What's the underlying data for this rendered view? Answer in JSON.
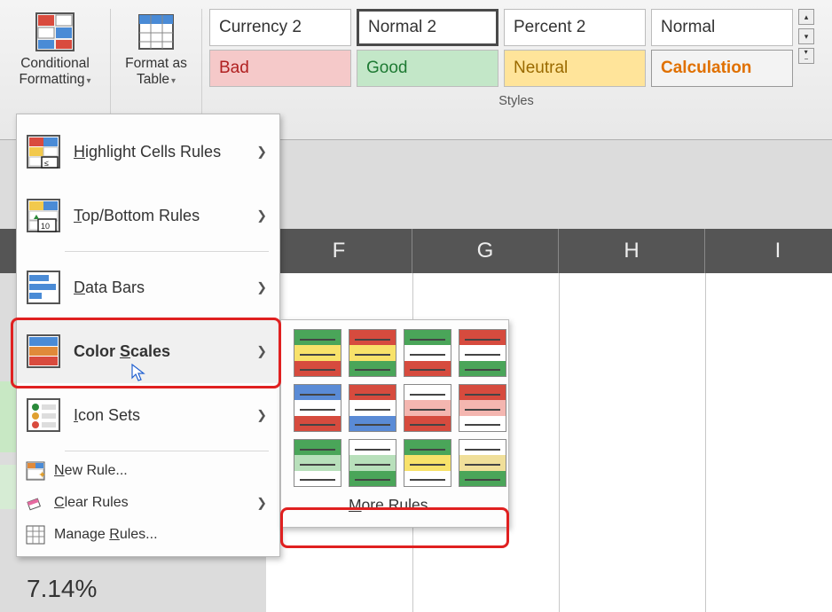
{
  "ribbon": {
    "cond_fmt": "Conditional Formatting",
    "fmt_table": "Format as Table",
    "styles_caption": "Styles",
    "styles": {
      "row1": [
        {
          "label": "Currency 2",
          "bg": "#ffffff",
          "fg": "#333333",
          "border": "#bcbcbc"
        },
        {
          "label": "Normal 2",
          "bg": "#ffffff",
          "fg": "#333333",
          "border": "#4a4a4a",
          "border_w": "3px"
        },
        {
          "label": "Percent 2",
          "bg": "#ffffff",
          "fg": "#333333",
          "border": "#bcbcbc"
        },
        {
          "label": "Normal",
          "bg": "#ffffff",
          "fg": "#333333",
          "border": "#bcbcbc"
        }
      ],
      "row2": [
        {
          "label": "Bad",
          "bg": "#f5c9c9",
          "fg": "#b02020",
          "border": "#bcbcbc"
        },
        {
          "label": "Good",
          "bg": "#c3e7c8",
          "fg": "#1e7a33",
          "border": "#bcbcbc"
        },
        {
          "label": "Neutral",
          "bg": "#ffe49a",
          "fg": "#9a6a00",
          "border": "#bcbcbc"
        },
        {
          "label": "Calculation",
          "bg": "#f3f3f3",
          "fg": "#e07000",
          "border": "#999999",
          "bold": true
        }
      ]
    }
  },
  "columns": [
    "F",
    "G",
    "H",
    "I"
  ],
  "visible_value": "7.14%",
  "menu": {
    "highlight": "Highlight Cells Rules",
    "topbottom": "Top/Bottom Rules",
    "databars": "Data Bars",
    "colorscales": "Color Scales",
    "iconsets": "Icon Sets",
    "newrule": "New Rule...",
    "clear": "Clear Rules",
    "manage": "Manage Rules...",
    "hotkeys": {
      "highlight": "H",
      "topbottom": "T",
      "databars": "D",
      "colorscales": "S",
      "iconsets": "I",
      "newrule": "N",
      "clear": "C",
      "manage": "R"
    }
  },
  "submenu": {
    "more": "More Rules...",
    "hotkey_more": "M",
    "swatches": [
      [
        "#4aa559",
        "#f8e26a",
        "#d64b3e"
      ],
      [
        "#d64b3e",
        "#f8e26a",
        "#4aa559"
      ],
      [
        "#4aa559",
        "#ffffff",
        "#d64b3e"
      ],
      [
        "#d64b3e",
        "#ffffff",
        "#4aa559"
      ],
      [
        "#5a8bd6",
        "#ffffff",
        "#d64b3e"
      ],
      [
        "#d64b3e",
        "#ffffff",
        "#5a8bd6"
      ],
      [
        "#ffffff",
        "#f4b6b0",
        "#d64b3e"
      ],
      [
        "#d64b3e",
        "#f4b6b0",
        "#ffffff"
      ],
      [
        "#4aa559",
        "#b8e0bb",
        "#ffffff"
      ],
      [
        "#ffffff",
        "#b8e0bb",
        "#4aa559"
      ],
      [
        "#4aa559",
        "#f8e26a",
        "#ffffff"
      ],
      [
        "#ffffff",
        "#f0df9a",
        "#4aa559"
      ]
    ]
  },
  "colors": {
    "highlight_border": "#e02020"
  }
}
